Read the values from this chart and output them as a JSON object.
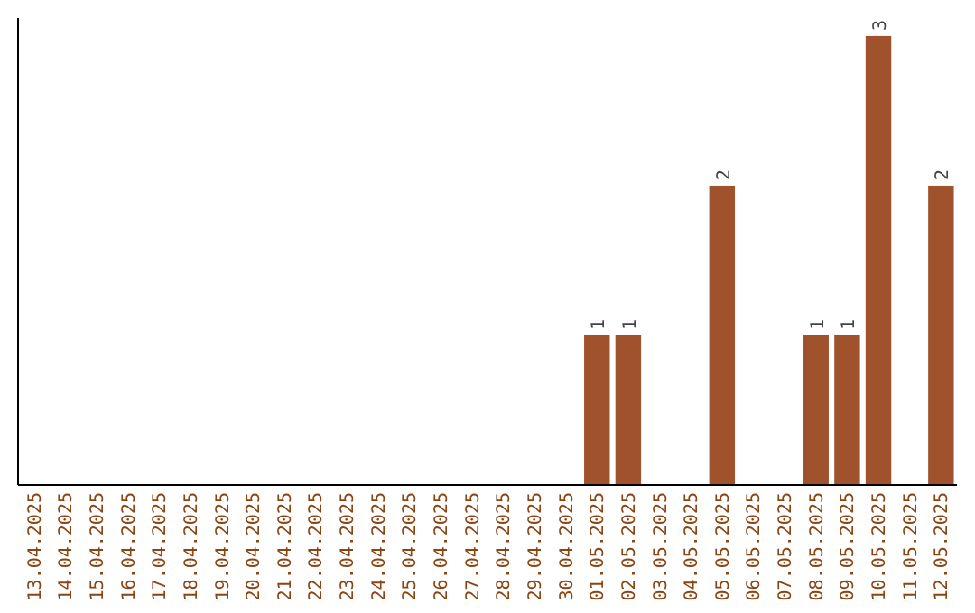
{
  "chart_data": {
    "type": "bar",
    "categories": [
      "13.04.2025",
      "14.04.2025",
      "15.04.2025",
      "16.04.2025",
      "17.04.2025",
      "18.04.2025",
      "19.04.2025",
      "20.04.2025",
      "21.04.2025",
      "22.04.2025",
      "23.04.2025",
      "24.04.2025",
      "25.04.2025",
      "26.04.2025",
      "27.04.2025",
      "28.04.2025",
      "29.04.2025",
      "30.04.2025",
      "01.05.2025",
      "02.05.2025",
      "03.05.2025",
      "04.05.2025",
      "05.05.2025",
      "06.05.2025",
      "07.05.2025",
      "08.05.2025",
      "09.05.2025",
      "10.05.2025",
      "11.05.2025",
      "12.05.2025"
    ],
    "values": [
      null,
      null,
      null,
      null,
      null,
      null,
      null,
      null,
      null,
      null,
      null,
      null,
      null,
      null,
      null,
      null,
      null,
      null,
      1,
      1,
      null,
      null,
      2,
      null,
      null,
      1,
      1,
      3,
      null,
      2
    ],
    "data_labels": true,
    "color": "#a0522d",
    "ylim": [
      0,
      3.12
    ],
    "tick_labels": "x",
    "grid": false
  }
}
